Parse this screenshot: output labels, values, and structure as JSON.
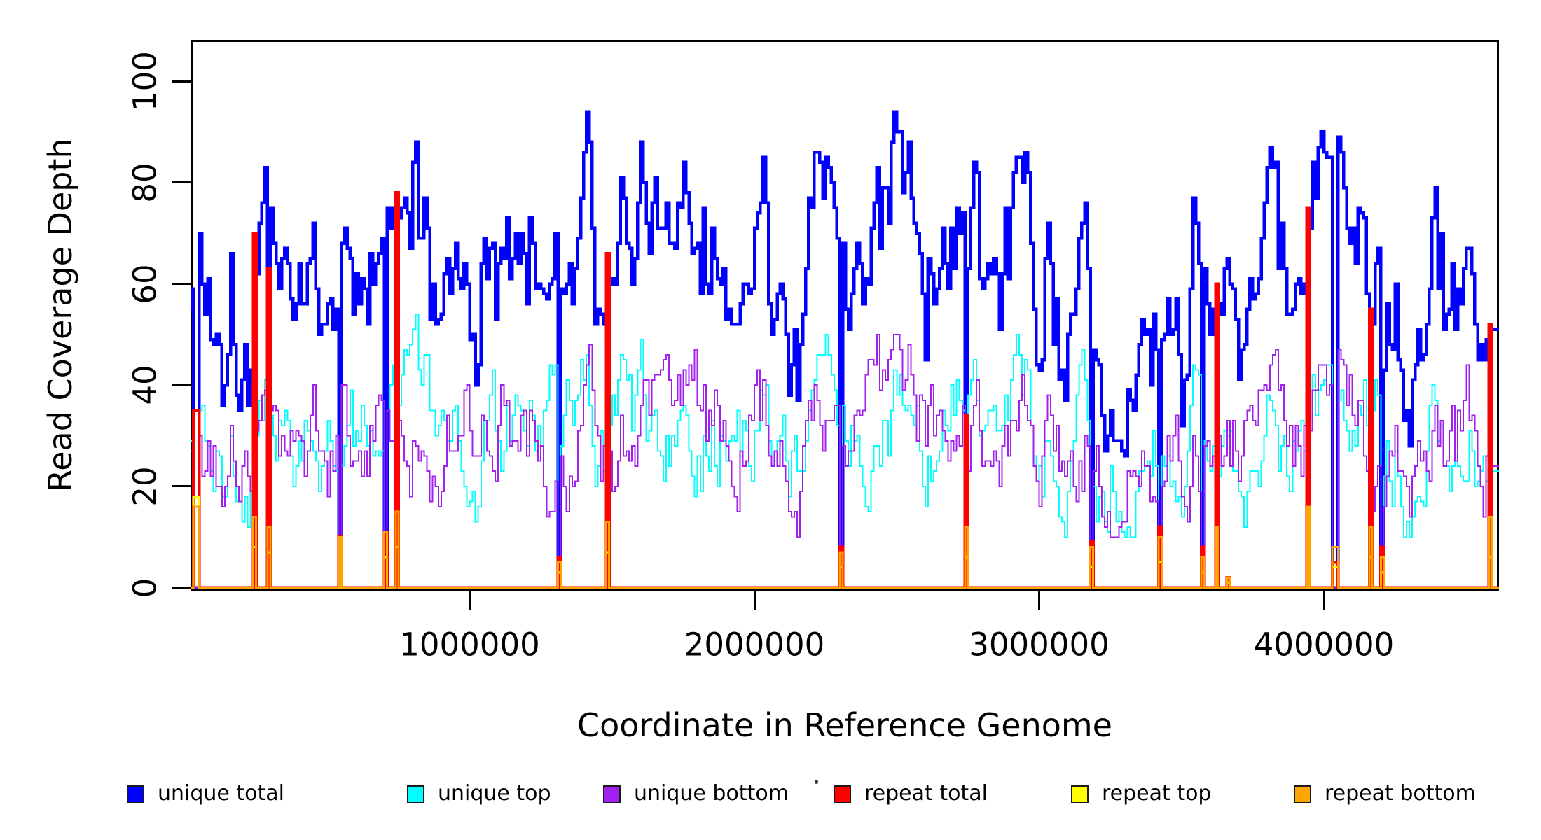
{
  "chart": {
    "ylabel": "Read Coverage Depth",
    "xlabel": "Coordinate in Reference Genome",
    "y_tick_labels": [
      "0",
      "20",
      "40",
      "60",
      "80",
      "100"
    ],
    "x_tick_labels": [
      "1000000",
      "2000000",
      "3000000",
      "4000000"
    ]
  },
  "legend": {
    "items": [
      {
        "label": "unique total",
        "color": "#0000FF"
      },
      {
        "label": "unique top",
        "color": "#00FFFF"
      },
      {
        "label": "unique bottom",
        "color": "#A020F0"
      },
      {
        "label": "repeat total",
        "color": "#FF0000"
      },
      {
        "label": "repeat top",
        "color": "#FFFF00"
      },
      {
        "label": "repeat bottom",
        "color": "#FFA500"
      }
    ]
  },
  "chart_data": {
    "type": "line",
    "subtype": "step",
    "title": "",
    "xlabel": "Coordinate in Reference Genome",
    "ylabel": "Read Coverage Depth",
    "x_range_bp": [
      0,
      4600000
    ],
    "window_bp": 10000,
    "n_windows": 460,
    "y_range": [
      0,
      104
    ],
    "y_ticks": [
      0,
      20,
      40,
      60,
      80,
      100
    ],
    "x_ticks": [
      1000000,
      2000000,
      3000000,
      4000000
    ],
    "grid": false,
    "legend_position": "bottom",
    "series": [
      {
        "name": "unique total",
        "color": "#0000FF",
        "line_width": 4.5,
        "baseline_mean": 64,
        "range": [
          33,
          103
        ]
      },
      {
        "name": "unique top",
        "color": "#00FFFF",
        "line_width": 2,
        "baseline_mean": 30,
        "range": [
          6,
          57
        ]
      },
      {
        "name": "unique bottom",
        "color": "#A020F0",
        "line_width": 2,
        "baseline_mean": 30,
        "range": [
          6,
          57
        ]
      },
      {
        "name": "repeat total",
        "color": "#FF0000",
        "line_width": 4.5,
        "baseline_mean": 0,
        "range": [
          0,
          78
        ]
      },
      {
        "name": "repeat top",
        "color": "#FFFF00",
        "line_width": 3,
        "baseline_mean": 0,
        "range": [
          0,
          18
        ]
      },
      {
        "name": "repeat bottom",
        "color": "#FFA500",
        "line_width": 3,
        "baseline_mean": 0,
        "range": [
          0,
          18
        ]
      }
    ],
    "repeat_regions": [
      {
        "pos_bp": 30000,
        "repeat_total": 35,
        "repeat_top": 18,
        "repeat_bottom": 16,
        "width_windows": 2
      },
      {
        "pos_bp": 240000,
        "repeat_total": 70,
        "repeat_top": 8,
        "repeat_bottom": 14,
        "width_windows": 1
      },
      {
        "pos_bp": 290000,
        "repeat_total": 63,
        "repeat_top": 7,
        "repeat_bottom": 12,
        "width_windows": 1
      },
      {
        "pos_bp": 540000,
        "repeat_total": 10,
        "repeat_top": 6,
        "repeat_bottom": 10,
        "width_windows": 1
      },
      {
        "pos_bp": 700000,
        "repeat_total": 11,
        "repeat_top": 6,
        "repeat_bottom": 11,
        "width_windows": 1
      },
      {
        "pos_bp": 740000,
        "repeat_total": 78,
        "repeat_top": 8,
        "repeat_bottom": 15,
        "width_windows": 1
      },
      {
        "pos_bp": 1310000,
        "repeat_total": 6,
        "repeat_top": 3,
        "repeat_bottom": 5,
        "width_windows": 1
      },
      {
        "pos_bp": 1475000,
        "repeat_total": 66,
        "repeat_top": 7,
        "repeat_bottom": 13,
        "width_windows": 1
      },
      {
        "pos_bp": 2295000,
        "repeat_total": 8,
        "repeat_top": 4,
        "repeat_bottom": 7,
        "width_windows": 1
      },
      {
        "pos_bp": 2740000,
        "repeat_total": 34,
        "repeat_top": 6,
        "repeat_bottom": 12,
        "width_windows": 1
      },
      {
        "pos_bp": 3180000,
        "repeat_total": 9,
        "repeat_top": 4,
        "repeat_bottom": 8,
        "width_windows": 1
      },
      {
        "pos_bp": 3420000,
        "repeat_total": 12,
        "repeat_top": 5,
        "repeat_bottom": 10,
        "width_windows": 1
      },
      {
        "pos_bp": 3570000,
        "repeat_total": 8,
        "repeat_top": 3,
        "repeat_bottom": 6,
        "width_windows": 1
      },
      {
        "pos_bp": 3615000,
        "repeat_total": 60,
        "repeat_top": 6,
        "repeat_bottom": 12,
        "width_windows": 1
      },
      {
        "pos_bp": 3660000,
        "repeat_total": 2,
        "repeat_top": 1,
        "repeat_bottom": 2,
        "width_windows": 1,
        "unique_drop": false
      },
      {
        "pos_bp": 3935000,
        "repeat_total": 75,
        "repeat_top": 8,
        "repeat_bottom": 16,
        "width_windows": 1
      },
      {
        "pos_bp": 4030000,
        "repeat_total": 5,
        "repeat_top": 4,
        "repeat_bottom": 8,
        "width_windows": 2
      },
      {
        "pos_bp": 4160000,
        "repeat_total": 55,
        "repeat_top": 6,
        "repeat_bottom": 12,
        "width_windows": 1
      },
      {
        "pos_bp": 4195000,
        "repeat_total": 8,
        "repeat_top": 3,
        "repeat_bottom": 6,
        "width_windows": 1
      },
      {
        "pos_bp": 4580000,
        "repeat_total": 52,
        "repeat_top": 6,
        "repeat_bottom": 14,
        "width_windows": 1
      }
    ],
    "synthesis_seed": 1337
  }
}
